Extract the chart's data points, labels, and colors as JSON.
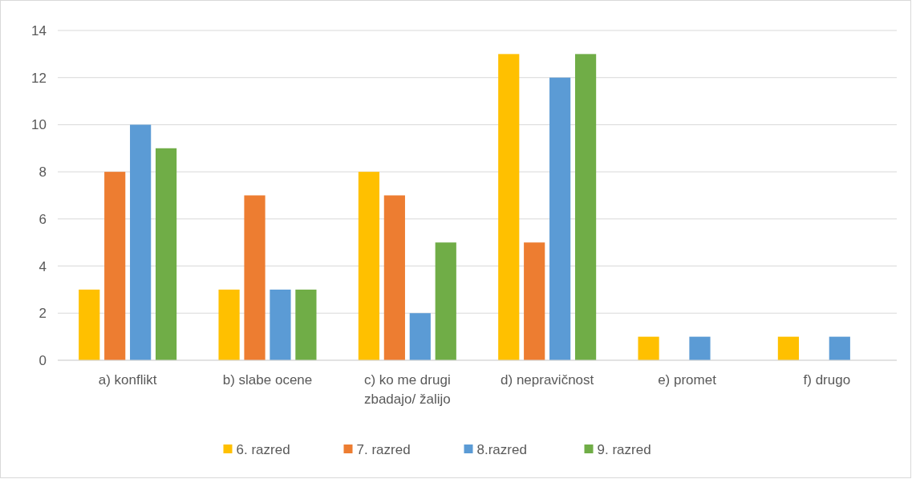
{
  "chart_data": {
    "type": "bar",
    "categories": [
      "a) konflikt",
      "b) slabe ocene",
      "c) ko me drugi zbadajo/ žalijo",
      "d) nepravičnost",
      "e) promet",
      "f) drugo"
    ],
    "series": [
      {
        "name": "6. razred",
        "color": "#ffc000",
        "values": [
          3,
          3,
          8,
          13,
          1,
          1
        ]
      },
      {
        "name": "7. razred",
        "color": "#ed7d31",
        "values": [
          8,
          7,
          7,
          5,
          0,
          0
        ]
      },
      {
        "name": "8.razred",
        "color": "#5b9bd5",
        "values": [
          10,
          3,
          2,
          12,
          1,
          1
        ]
      },
      {
        "name": "9. razred",
        "color": "#70ad47",
        "values": [
          9,
          3,
          5,
          13,
          0,
          0
        ]
      }
    ],
    "ylim": [
      0,
      14
    ],
    "yticks": [
      0,
      2,
      4,
      6,
      8,
      10,
      12,
      14
    ],
    "grid": "y",
    "legend": "bottom"
  }
}
